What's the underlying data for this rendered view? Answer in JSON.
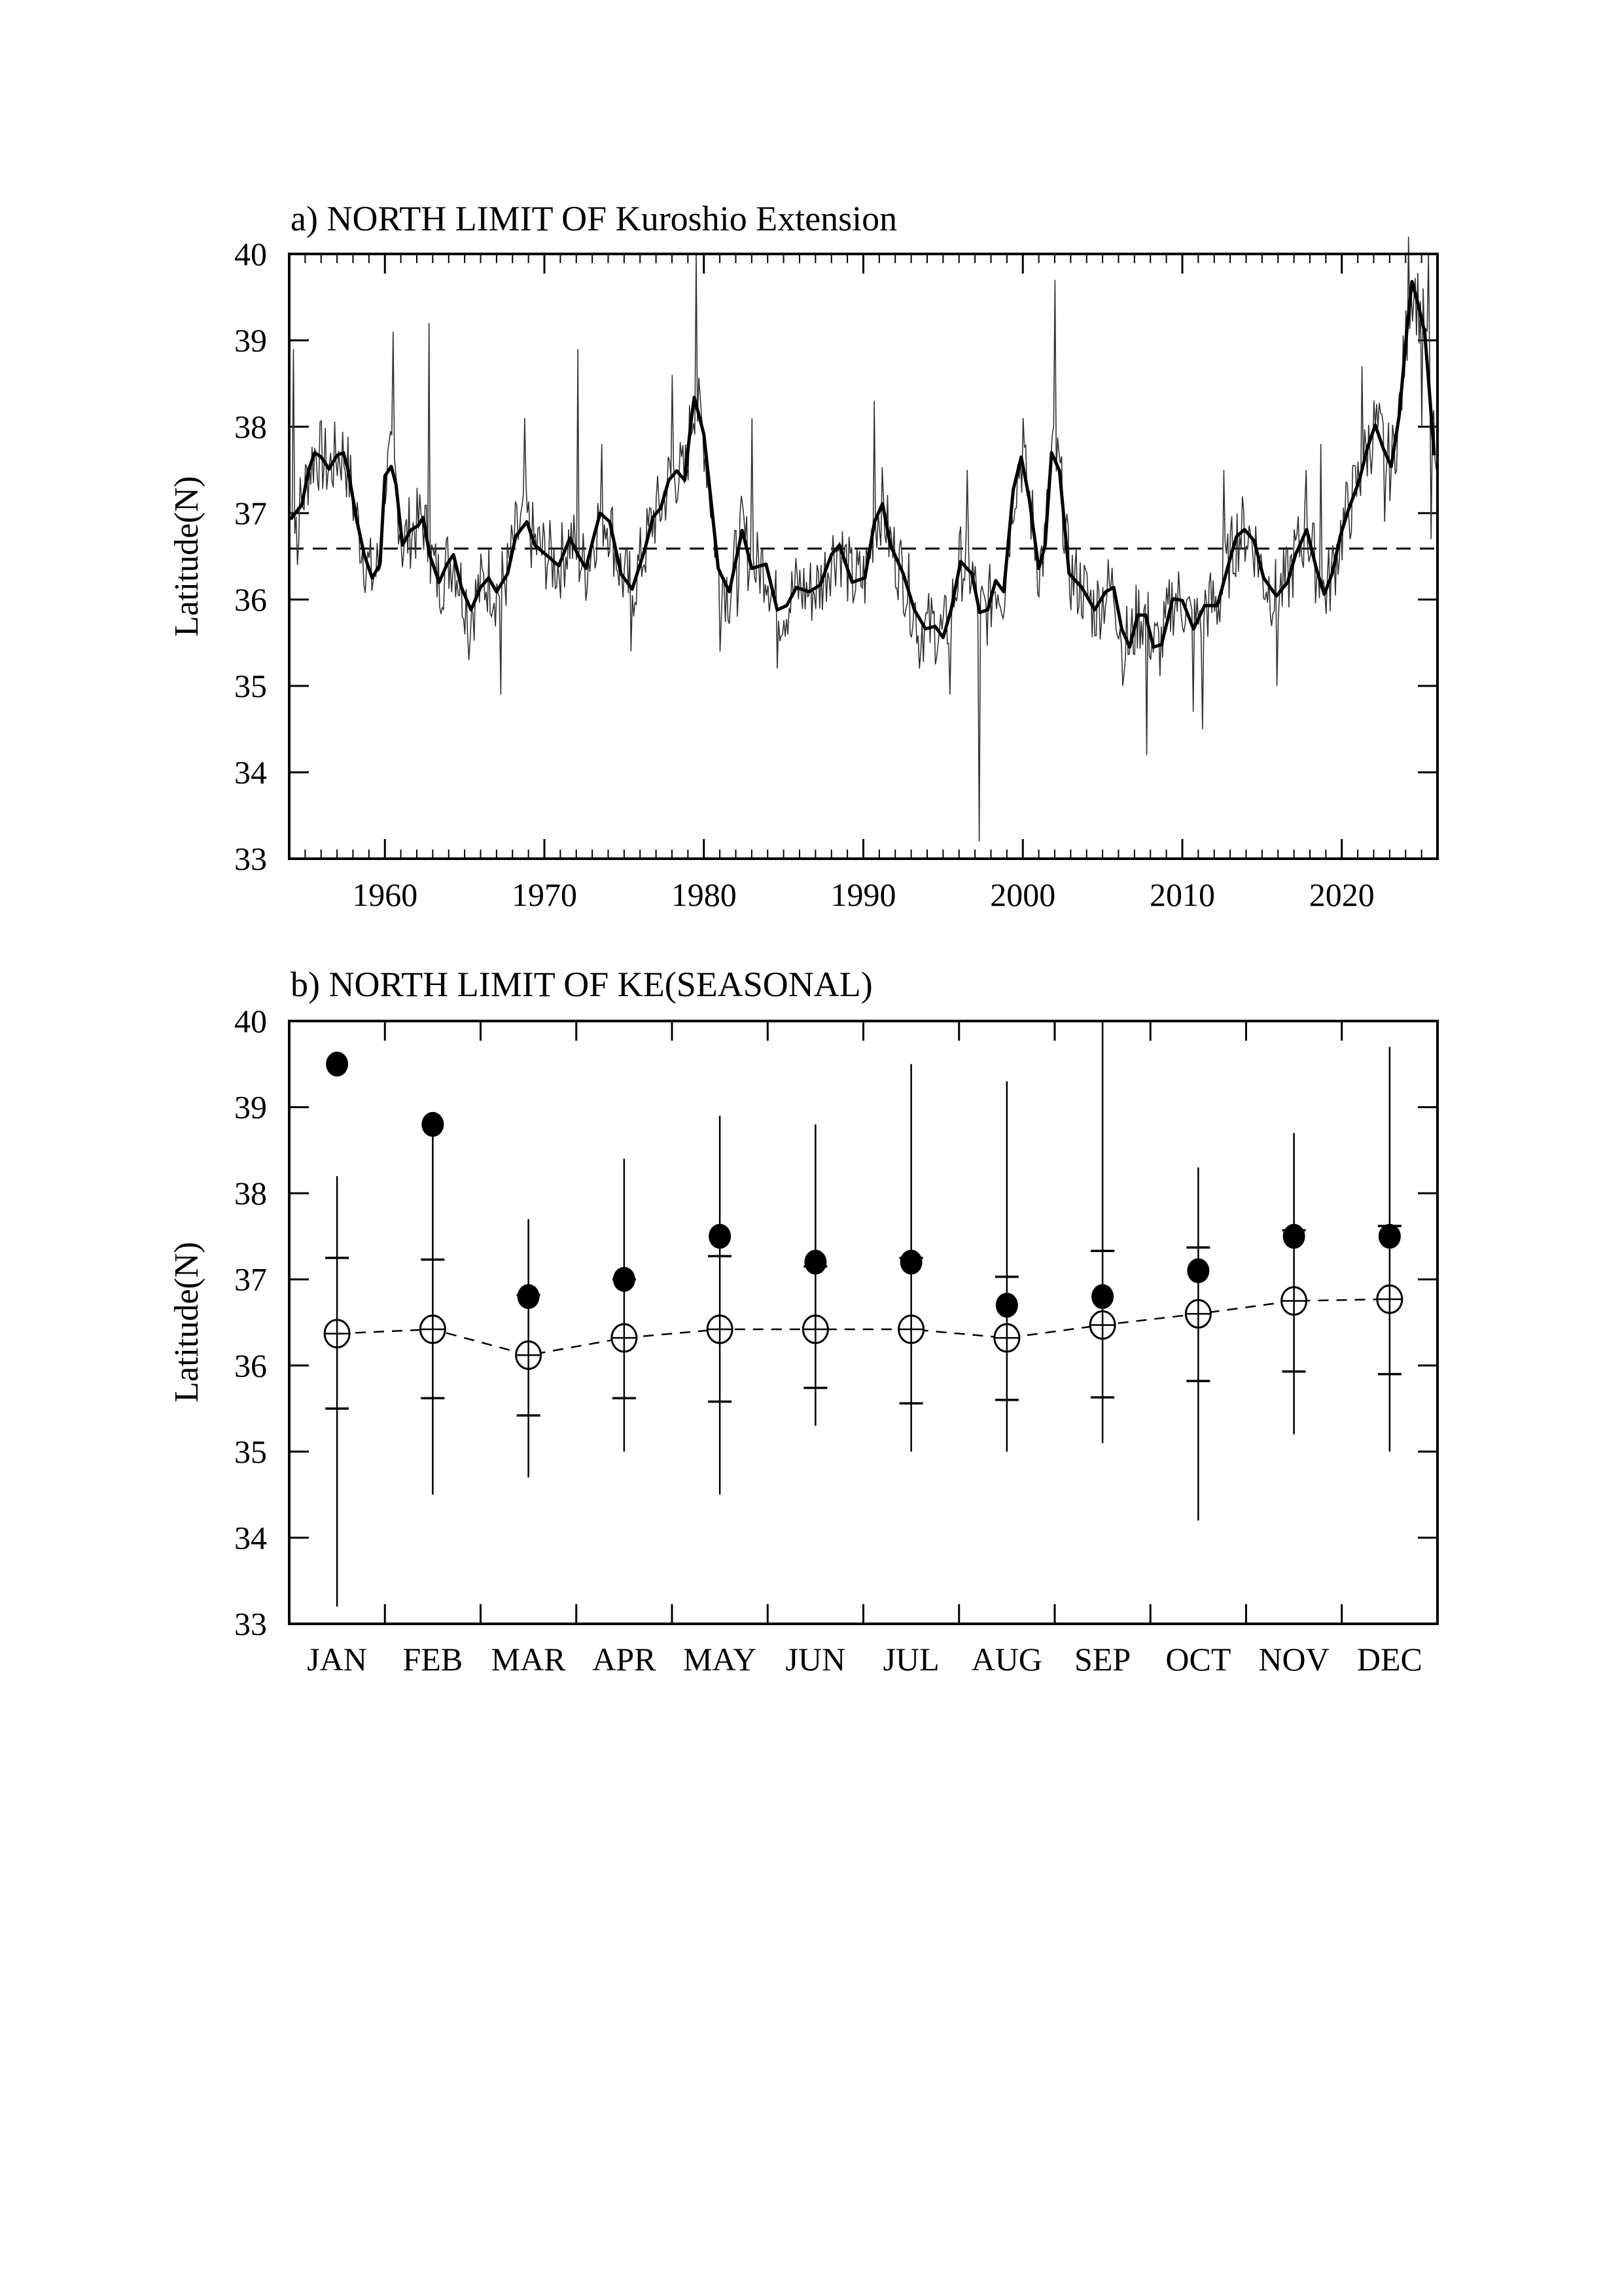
{
  "chart_data": [
    {
      "type": "line",
      "title": "a) NORTH LIMIT OF Kuroshio Extension",
      "xlabel": "",
      "ylabel": "Latitude(N)",
      "xlim": [
        1954,
        2026
      ],
      "ylim": [
        33,
        40
      ],
      "xticks": [
        "1960",
        "1970",
        "1980",
        "1990",
        "2000",
        "2010",
        "2020"
      ],
      "xtick_values": [
        1960,
        1970,
        1980,
        1990,
        2000,
        2010,
        2020
      ],
      "yticks": [
        "33",
        "34",
        "35",
        "36",
        "37",
        "38",
        "39",
        "40"
      ],
      "reference_line": 36.59,
      "series": [
        {
          "name": "smoothed",
          "style": "thick",
          "points": [
            [
              1954.1,
              36.93
            ],
            [
              1954.8,
              37.1
            ],
            [
              1955.2,
              37.49
            ],
            [
              1955.6,
              37.7
            ],
            [
              1956.0,
              37.65
            ],
            [
              1956.5,
              37.51
            ],
            [
              1957.0,
              37.67
            ],
            [
              1957.4,
              37.7
            ],
            [
              1957.7,
              37.49
            ],
            [
              1958.2,
              36.95
            ],
            [
              1958.7,
              36.52
            ],
            [
              1959.2,
              36.25
            ],
            [
              1959.7,
              36.41
            ],
            [
              1960.0,
              37.43
            ],
            [
              1960.4,
              37.54
            ],
            [
              1960.7,
              37.33
            ],
            [
              1961.1,
              36.63
            ],
            [
              1961.6,
              36.8
            ],
            [
              1962.1,
              36.86
            ],
            [
              1962.4,
              36.95
            ],
            [
              1962.8,
              36.52
            ],
            [
              1963.4,
              36.2
            ],
            [
              1963.9,
              36.41
            ],
            [
              1964.3,
              36.52
            ],
            [
              1964.8,
              36.14
            ],
            [
              1965.4,
              35.88
            ],
            [
              1966.0,
              36.14
            ],
            [
              1966.5,
              36.25
            ],
            [
              1967.0,
              36.09
            ],
            [
              1967.7,
              36.3
            ],
            [
              1968.2,
              36.73
            ],
            [
              1968.9,
              36.9
            ],
            [
              1969.4,
              36.63
            ],
            [
              1970.1,
              36.52
            ],
            [
              1970.9,
              36.39
            ],
            [
              1971.6,
              36.71
            ],
            [
              1972.1,
              36.52
            ],
            [
              1972.6,
              36.36
            ],
            [
              1973.1,
              36.73
            ],
            [
              1973.5,
              37.0
            ],
            [
              1974.1,
              36.9
            ],
            [
              1974.8,
              36.3
            ],
            [
              1975.5,
              36.12
            ],
            [
              1976.3,
              36.58
            ],
            [
              1976.8,
              36.95
            ],
            [
              1977.3,
              37.06
            ],
            [
              1977.8,
              37.38
            ],
            [
              1978.3,
              37.49
            ],
            [
              1978.8,
              37.38
            ],
            [
              1979.2,
              38.07
            ],
            [
              1979.4,
              38.34
            ],
            [
              1980.0,
              37.91
            ],
            [
              1980.5,
              37.06
            ],
            [
              1980.9,
              36.36
            ],
            [
              1981.6,
              36.09
            ],
            [
              1982.4,
              36.8
            ],
            [
              1983.0,
              36.36
            ],
            [
              1983.9,
              36.41
            ],
            [
              1984.6,
              35.88
            ],
            [
              1985.2,
              35.93
            ],
            [
              1985.8,
              36.14
            ],
            [
              1986.6,
              36.09
            ],
            [
              1987.3,
              36.17
            ],
            [
              1988.0,
              36.52
            ],
            [
              1988.5,
              36.63
            ],
            [
              1989.3,
              36.2
            ],
            [
              1990.1,
              36.25
            ],
            [
              1990.7,
              36.9
            ],
            [
              1991.2,
              37.11
            ],
            [
              1991.7,
              36.63
            ],
            [
              1992.5,
              36.3
            ],
            [
              1993.2,
              35.88
            ],
            [
              1993.9,
              35.66
            ],
            [
              1994.5,
              35.69
            ],
            [
              1995.0,
              35.56
            ],
            [
              1995.5,
              35.88
            ],
            [
              1996.1,
              36.44
            ],
            [
              1996.8,
              36.3
            ],
            [
              1997.3,
              35.85
            ],
            [
              1997.8,
              35.88
            ],
            [
              1998.3,
              36.22
            ],
            [
              1998.8,
              36.09
            ],
            [
              1999.4,
              37.27
            ],
            [
              1999.9,
              37.65
            ],
            [
              2000.4,
              37.17
            ],
            [
              2001.0,
              36.36
            ],
            [
              2001.4,
              36.63
            ],
            [
              2001.8,
              37.7
            ],
            [
              2002.3,
              37.49
            ],
            [
              2002.9,
              36.3
            ],
            [
              2003.7,
              36.14
            ],
            [
              2004.5,
              35.88
            ],
            [
              2005.2,
              36.09
            ],
            [
              2005.7,
              36.14
            ],
            [
              2006.2,
              35.66
            ],
            [
              2006.7,
              35.45
            ],
            [
              2007.2,
              35.82
            ],
            [
              2007.7,
              35.82
            ],
            [
              2008.2,
              35.45
            ],
            [
              2008.7,
              35.48
            ],
            [
              2009.4,
              36.01
            ],
            [
              2010.0,
              35.99
            ],
            [
              2010.7,
              35.66
            ],
            [
              2011.4,
              35.93
            ],
            [
              2012.2,
              35.93
            ],
            [
              2012.9,
              36.41
            ],
            [
              2013.4,
              36.73
            ],
            [
              2013.9,
              36.81
            ],
            [
              2014.5,
              36.68
            ],
            [
              2015.1,
              36.25
            ],
            [
              2015.9,
              36.04
            ],
            [
              2016.6,
              36.2
            ],
            [
              2017.1,
              36.52
            ],
            [
              2017.8,
              36.81
            ],
            [
              2018.4,
              36.36
            ],
            [
              2018.9,
              36.06
            ],
            [
              2019.4,
              36.3
            ],
            [
              2019.9,
              36.73
            ],
            [
              2020.4,
              37.03
            ],
            [
              2021.1,
              37.38
            ],
            [
              2021.6,
              37.75
            ],
            [
              2022.1,
              38.02
            ],
            [
              2022.6,
              37.75
            ],
            [
              2023.1,
              37.54
            ],
            [
              2023.6,
              38.13
            ],
            [
              2024.1,
              39.15
            ],
            [
              2024.4,
              39.68
            ],
            [
              2024.8,
              39.41
            ],
            [
              2025.2,
              39.09
            ],
            [
              2025.5,
              38.39
            ],
            [
              2025.8,
              37.67
            ]
          ]
        },
        {
          "name": "monthly",
          "style": "thin",
          "extremes": [
            [
              1954.3,
              38.9
            ],
            [
              1954.5,
              36.4
            ],
            [
              1960.5,
              39.1
            ],
            [
              1962.8,
              39.2
            ],
            [
              1965.3,
              35.3
            ],
            [
              1967.3,
              34.9
            ],
            [
              1968.8,
              38.1
            ],
            [
              1972.1,
              38.9
            ],
            [
              1973.6,
              37.8
            ],
            [
              1975.4,
              35.4
            ],
            [
              1978.0,
              38.6
            ],
            [
              1979.5,
              40.0
            ],
            [
              1981.0,
              35.4
            ],
            [
              1982.1,
              35.8
            ],
            [
              1983.0,
              38.1
            ],
            [
              1984.6,
              35.2
            ],
            [
              1990.7,
              38.3
            ],
            [
              1993.5,
              35.2
            ],
            [
              1995.4,
              34.9
            ],
            [
              1996.5,
              37.5
            ],
            [
              1997.3,
              33.2
            ],
            [
              2000.0,
              38.1
            ],
            [
              2002.0,
              39.7
            ],
            [
              2006.3,
              35.0
            ],
            [
              2007.8,
              34.2
            ],
            [
              2010.7,
              34.7
            ],
            [
              2011.3,
              34.5
            ],
            [
              2012.6,
              37.5
            ],
            [
              2015.9,
              35.0
            ],
            [
              2017.8,
              37.5
            ],
            [
              2018.7,
              37.8
            ],
            [
              2021.3,
              38.7
            ],
            [
              2022.7,
              36.9
            ],
            [
              2024.2,
              40.2
            ],
            [
              2025.0,
              38.0
            ],
            [
              2025.4,
              40.0
            ],
            [
              2025.6,
              36.7
            ],
            [
              2025.9,
              37.5
            ]
          ]
        }
      ]
    },
    {
      "type": "scatter",
      "title": "b) NORTH LIMIT OF KE(SEASONAL)",
      "xlabel": "",
      "ylabel": "Latitude(N)",
      "ylim": [
        33,
        40
      ],
      "yticks": [
        "33",
        "34",
        "35",
        "36",
        "37",
        "38",
        "39",
        "40"
      ],
      "categories": [
        "JAN",
        "FEB",
        "MAR",
        "APR",
        "MAY",
        "JUN",
        "JUL",
        "AUG",
        "SEP",
        "OCT",
        "NOV",
        "DEC"
      ],
      "mean": [
        36.37,
        36.42,
        36.12,
        36.32,
        36.42,
        36.42,
        36.42,
        36.32,
        36.47,
        36.6,
        36.75,
        36.77
      ],
      "latest": [
        39.5,
        38.8,
        36.8,
        37.0,
        37.5,
        37.2,
        37.2,
        36.7,
        36.8,
        37.1,
        37.5,
        37.5
      ],
      "sd_upper": [
        37.25,
        37.23,
        36.82,
        37.0,
        37.27,
        37.15,
        37.25,
        37.03,
        37.33,
        37.37,
        37.57,
        37.62
      ],
      "sd_lower": [
        35.5,
        35.62,
        35.42,
        35.62,
        35.58,
        35.74,
        35.56,
        35.6,
        35.63,
        35.82,
        35.93,
        35.9
      ],
      "max": [
        38.2,
        38.8,
        37.7,
        38.4,
        38.9,
        38.8,
        39.5,
        39.3,
        40.0,
        38.3,
        38.7,
        39.7
      ],
      "min": [
        33.2,
        34.5,
        34.7,
        35.0,
        34.5,
        35.3,
        35.0,
        35.0,
        35.1,
        34.2,
        35.2,
        35.0
      ]
    }
  ]
}
